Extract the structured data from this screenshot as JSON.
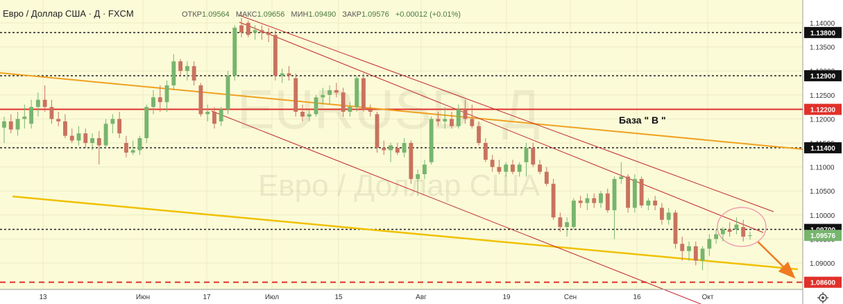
{
  "header": {
    "symbol": "Евро / Доллар США · Д · FXCM",
    "open_label": "ОТКР",
    "open_value": "1.09564",
    "high_label": "МАКС",
    "high_value": "1.09656",
    "low_label": "МИН",
    "low_value": "1.09490",
    "close_label": "ЗАКР",
    "close_value": "1.09576",
    "change": "+0.00012 (+0.01%)"
  },
  "watermark": {
    "symbol": "EURUSD, Д",
    "name": "Евро / Доллар США"
  },
  "annotation": "База \" В \"",
  "colors": {
    "background": "#fbfbd7",
    "up": "#77b56e",
    "down": "#c8735f",
    "resistance": "#e0302a",
    "trend_orange": "#f0a020",
    "trend_yellow": "#f0c000",
    "channel": "#c0282a",
    "arrow": "#f07a20",
    "circle": "#f0a0b0"
  },
  "chart_data": {
    "type": "candlestick",
    "y_ticks": [
      "1.14000",
      "1.13500",
      "1.13000",
      "1.12500",
      "1.12000",
      "1.11500",
      "1.11000",
      "1.10500",
      "1.10000",
      "1.09500",
      "1.09000"
    ],
    "x_ticks": [
      "13",
      "Июн",
      "17",
      "Июл",
      "15",
      "Авг",
      "19",
      "Сен",
      "16",
      "Окт"
    ],
    "levels": [
      {
        "value": "1.13800",
        "style": "dotted-black"
      },
      {
        "value": "1.12900",
        "style": "dotted-black"
      },
      {
        "value": "1.12200",
        "style": "solid-red"
      },
      {
        "value": "1.11400",
        "style": "dotted-black"
      },
      {
        "value": "1.09700",
        "style": "dotted-black"
      },
      {
        "value": "1.09576",
        "style": "last-price-green"
      },
      {
        "value": "1.08600",
        "style": "dashed-red"
      }
    ],
    "candles": [
      {
        "o": 1.1182,
        "h": 1.1205,
        "l": 1.115,
        "c": 1.1195
      },
      {
        "o": 1.1195,
        "h": 1.121,
        "l": 1.117,
        "c": 1.1178
      },
      {
        "o": 1.1178,
        "h": 1.1215,
        "l": 1.1165,
        "c": 1.12
      },
      {
        "o": 1.12,
        "h": 1.123,
        "l": 1.118,
        "c": 1.1205
      },
      {
        "o": 1.119,
        "h": 1.124,
        "l": 1.118,
        "c": 1.1225
      },
      {
        "o": 1.1225,
        "h": 1.1255,
        "l": 1.1205,
        "c": 1.124
      },
      {
        "o": 1.124,
        "h": 1.127,
        "l": 1.1215,
        "c": 1.1225
      },
      {
        "o": 1.1225,
        "h": 1.124,
        "l": 1.119,
        "c": 1.12
      },
      {
        "o": 1.12,
        "h": 1.1215,
        "l": 1.1185,
        "c": 1.1195
      },
      {
        "o": 1.1195,
        "h": 1.121,
        "l": 1.116,
        "c": 1.1165
      },
      {
        "o": 1.1165,
        "h": 1.118,
        "l": 1.115,
        "c": 1.1155
      },
      {
        "o": 1.1155,
        "h": 1.1185,
        "l": 1.1145,
        "c": 1.117
      },
      {
        "o": 1.117,
        "h": 1.118,
        "l": 1.114,
        "c": 1.115
      },
      {
        "o": 1.115,
        "h": 1.117,
        "l": 1.1135,
        "c": 1.116
      },
      {
        "o": 1.116,
        "h": 1.1175,
        "l": 1.1105,
        "c": 1.1145
      },
      {
        "o": 1.1145,
        "h": 1.12,
        "l": 1.114,
        "c": 1.119
      },
      {
        "o": 1.119,
        "h": 1.121,
        "l": 1.117,
        "c": 1.12
      },
      {
        "o": 1.12,
        "h": 1.1215,
        "l": 1.116,
        "c": 1.117
      },
      {
        "o": 1.115,
        "h": 1.1165,
        "l": 1.112,
        "c": 1.113
      },
      {
        "o": 1.113,
        "h": 1.1155,
        "l": 1.1125,
        "c": 1.1135
      },
      {
        "o": 1.1135,
        "h": 1.1165,
        "l": 1.1125,
        "c": 1.116
      },
      {
        "o": 1.116,
        "h": 1.123,
        "l": 1.115,
        "c": 1.1225
      },
      {
        "o": 1.1225,
        "h": 1.126,
        "l": 1.121,
        "c": 1.1245
      },
      {
        "o": 1.1245,
        "h": 1.127,
        "l": 1.1215,
        "c": 1.1235
      },
      {
        "o": 1.1235,
        "h": 1.128,
        "l": 1.1215,
        "c": 1.127
      },
      {
        "o": 1.127,
        "h": 1.1335,
        "l": 1.126,
        "c": 1.132
      },
      {
        "o": 1.132,
        "h": 1.1325,
        "l": 1.129,
        "c": 1.13
      },
      {
        "o": 1.13,
        "h": 1.132,
        "l": 1.128,
        "c": 1.131
      },
      {
        "o": 1.131,
        "h": 1.132,
        "l": 1.127,
        "c": 1.128
      },
      {
        "o": 1.127,
        "h": 1.1275,
        "l": 1.1205,
        "c": 1.121
      },
      {
        "o": 1.121,
        "h": 1.123,
        "l": 1.1195,
        "c": 1.1215
      },
      {
        "o": 1.1215,
        "h": 1.1225,
        "l": 1.118,
        "c": 1.119
      },
      {
        "o": 1.1195,
        "h": 1.1225,
        "l": 1.1185,
        "c": 1.122
      },
      {
        "o": 1.122,
        "h": 1.13,
        "l": 1.121,
        "c": 1.129
      },
      {
        "o": 1.129,
        "h": 1.1395,
        "l": 1.128,
        "c": 1.139
      },
      {
        "o": 1.1395,
        "h": 1.141,
        "l": 1.137,
        "c": 1.138
      },
      {
        "o": 1.14,
        "h": 1.1405,
        "l": 1.137,
        "c": 1.1375
      },
      {
        "o": 1.138,
        "h": 1.1395,
        "l": 1.1365,
        "c": 1.1385
      },
      {
        "o": 1.1385,
        "h": 1.1395,
        "l": 1.1365,
        "c": 1.138
      },
      {
        "o": 1.138,
        "h": 1.139,
        "l": 1.136,
        "c": 1.1375
      },
      {
        "o": 1.1375,
        "h": 1.1385,
        "l": 1.128,
        "c": 1.129
      },
      {
        "o": 1.129,
        "h": 1.1305,
        "l": 1.1275,
        "c": 1.1295
      },
      {
        "o": 1.1295,
        "h": 1.131,
        "l": 1.128,
        "c": 1.129
      },
      {
        "o": 1.1285,
        "h": 1.1295,
        "l": 1.1205,
        "c": 1.1215
      },
      {
        "o": 1.1215,
        "h": 1.123,
        "l": 1.1195,
        "c": 1.1205
      },
      {
        "o": 1.1205,
        "h": 1.122,
        "l": 1.1195,
        "c": 1.121
      },
      {
        "o": 1.121,
        "h": 1.125,
        "l": 1.1205,
        "c": 1.1245
      },
      {
        "o": 1.1245,
        "h": 1.1265,
        "l": 1.123,
        "c": 1.125
      },
      {
        "o": 1.125,
        "h": 1.127,
        "l": 1.123,
        "c": 1.126
      },
      {
        "o": 1.126,
        "h": 1.1275,
        "l": 1.1245,
        "c": 1.1255
      },
      {
        "o": 1.1255,
        "h": 1.1265,
        "l": 1.1205,
        "c": 1.1215
      },
      {
        "o": 1.1215,
        "h": 1.1235,
        "l": 1.1205,
        "c": 1.1225
      },
      {
        "o": 1.1225,
        "h": 1.129,
        "l": 1.1215,
        "c": 1.1285
      },
      {
        "o": 1.1285,
        "h": 1.1295,
        "l": 1.1215,
        "c": 1.122
      },
      {
        "o": 1.122,
        "h": 1.123,
        "l": 1.1205,
        "c": 1.1215
      },
      {
        "o": 1.121,
        "h": 1.1215,
        "l": 1.113,
        "c": 1.114
      },
      {
        "o": 1.114,
        "h": 1.1155,
        "l": 1.1125,
        "c": 1.1135
      },
      {
        "o": 1.1135,
        "h": 1.115,
        "l": 1.111,
        "c": 1.1145
      },
      {
        "o": 1.114,
        "h": 1.115,
        "l": 1.1125,
        "c": 1.113
      },
      {
        "o": 1.113,
        "h": 1.116,
        "l": 1.112,
        "c": 1.115
      },
      {
        "o": 1.115,
        "h": 1.1155,
        "l": 1.1065,
        "c": 1.1075
      },
      {
        "o": 1.1075,
        "h": 1.1095,
        "l": 1.104,
        "c": 1.1085
      },
      {
        "o": 1.1085,
        "h": 1.1115,
        "l": 1.1075,
        "c": 1.1105
      },
      {
        "o": 1.111,
        "h": 1.1205,
        "l": 1.1105,
        "c": 1.12
      },
      {
        "o": 1.12,
        "h": 1.1215,
        "l": 1.1185,
        "c": 1.1195
      },
      {
        "o": 1.1195,
        "h": 1.1225,
        "l": 1.118,
        "c": 1.12
      },
      {
        "o": 1.12,
        "h": 1.1215,
        "l": 1.118,
        "c": 1.1185
      },
      {
        "o": 1.1185,
        "h": 1.123,
        "l": 1.118,
        "c": 1.122
      },
      {
        "o": 1.122,
        "h": 1.124,
        "l": 1.119,
        "c": 1.12
      },
      {
        "o": 1.12,
        "h": 1.123,
        "l": 1.118,
        "c": 1.1185
      },
      {
        "o": 1.1185,
        "h": 1.1195,
        "l": 1.1145,
        "c": 1.115
      },
      {
        "o": 1.115,
        "h": 1.116,
        "l": 1.111,
        "c": 1.1115
      },
      {
        "o": 1.1115,
        "h": 1.1125,
        "l": 1.109,
        "c": 1.11
      },
      {
        "o": 1.11,
        "h": 1.1115,
        "l": 1.1085,
        "c": 1.109
      },
      {
        "o": 1.109,
        "h": 1.111,
        "l": 1.108,
        "c": 1.1105
      },
      {
        "o": 1.1105,
        "h": 1.1115,
        "l": 1.1085,
        "c": 1.109
      },
      {
        "o": 1.109,
        "h": 1.111,
        "l": 1.108,
        "c": 1.1105
      },
      {
        "o": 1.111,
        "h": 1.115,
        "l": 1.108,
        "c": 1.114
      },
      {
        "o": 1.114,
        "h": 1.115,
        "l": 1.11,
        "c": 1.1105
      },
      {
        "o": 1.1105,
        "h": 1.1115,
        "l": 1.1085,
        "c": 1.109
      },
      {
        "o": 1.109,
        "h": 1.11,
        "l": 1.106,
        "c": 1.1065
      },
      {
        "o": 1.1065,
        "h": 1.1075,
        "l": 1.099,
        "c": 1.0995
      },
      {
        "o": 1.0995,
        "h": 1.1005,
        "l": 1.0965,
        "c": 1.0975
      },
      {
        "o": 1.0975,
        "h": 1.0995,
        "l": 1.0955,
        "c": 1.0985
      },
      {
        "o": 1.0975,
        "h": 1.1035,
        "l": 1.097,
        "c": 1.103
      },
      {
        "o": 1.103,
        "h": 1.104,
        "l": 1.1015,
        "c": 1.1025
      },
      {
        "o": 1.1025,
        "h": 1.1045,
        "l": 1.101,
        "c": 1.1035
      },
      {
        "o": 1.1035,
        "h": 1.1045,
        "l": 1.1015,
        "c": 1.1025
      },
      {
        "o": 1.1025,
        "h": 1.105,
        "l": 1.1015,
        "c": 1.1045
      },
      {
        "o": 1.1045,
        "h": 1.1055,
        "l": 1.1005,
        "c": 1.101
      },
      {
        "o": 1.101,
        "h": 1.108,
        "l": 1.095,
        "c": 1.1075
      },
      {
        "o": 1.1075,
        "h": 1.111,
        "l": 1.1065,
        "c": 1.108
      },
      {
        "o": 1.108,
        "h": 1.1085,
        "l": 1.1005,
        "c": 1.1015
      },
      {
        "o": 1.1015,
        "h": 1.1085,
        "l": 1.1005,
        "c": 1.1075
      },
      {
        "o": 1.1075,
        "h": 1.108,
        "l": 1.1015,
        "c": 1.102
      },
      {
        "o": 1.102,
        "h": 1.1035,
        "l": 1.101,
        "c": 1.103
      },
      {
        "o": 1.103,
        "h": 1.104,
        "l": 1.101,
        "c": 1.102
      },
      {
        "o": 1.1015,
        "h": 1.1025,
        "l": 1.098,
        "c": 1.099
      },
      {
        "o": 1.099,
        "h": 1.1015,
        "l": 1.098,
        "c": 1.1005
      },
      {
        "o": 1.1005,
        "h": 1.101,
        "l": 1.093,
        "c": 1.094
      },
      {
        "o": 1.094,
        "h": 1.0955,
        "l": 1.0905,
        "c": 1.0925
      },
      {
        "o": 1.0925,
        "h": 1.0945,
        "l": 1.0905,
        "c": 1.0935
      },
      {
        "o": 1.0935,
        "h": 1.0945,
        "l": 1.0895,
        "c": 1.0905
      },
      {
        "o": 1.0905,
        "h": 1.0935,
        "l": 1.0885,
        "c": 1.093
      },
      {
        "o": 1.093,
        "h": 1.096,
        "l": 1.0915,
        "c": 1.095
      },
      {
        "o": 1.095,
        "h": 1.097,
        "l": 1.094,
        "c": 1.096
      },
      {
        "o": 1.096,
        "h": 1.0975,
        "l": 1.0945,
        "c": 1.097
      },
      {
        "o": 1.097,
        "h": 1.0985,
        "l": 1.0955,
        "c": 1.0965
      },
      {
        "o": 1.097,
        "h": 1.0995,
        "l": 1.096,
        "c": 1.098
      },
      {
        "o": 1.0975,
        "h": 1.099,
        "l": 1.0945,
        "c": 1.0955
      },
      {
        "o": 1.09564,
        "h": 1.09656,
        "l": 1.0949,
        "c": 1.09576
      }
    ]
  }
}
